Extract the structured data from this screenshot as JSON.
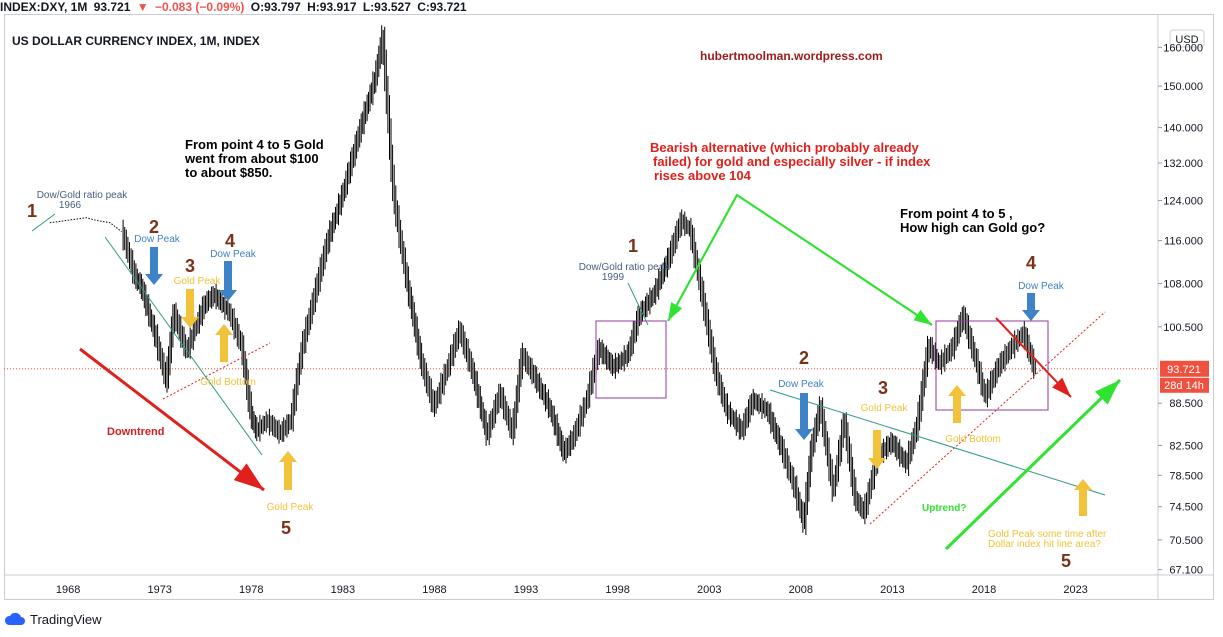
{
  "header": {
    "symbol": "INDEX:DXY, 1M",
    "last": "93.721",
    "change_icon": "down-triangle",
    "change": "−0.083 (−0.09%)",
    "open": "O:93.797",
    "high": "H:93.917",
    "low": "L:93.527",
    "close": "C:93.721"
  },
  "footer": {
    "brand": "TradingView"
  },
  "colors": {
    "candle": "#000000",
    "red": "#e0201c",
    "green": "#32e232",
    "blue": "#3e82c8",
    "yellow": "#f2c23a",
    "brown": "#7b3219",
    "purple": "#8f3a9c",
    "teal": "#2e9b8a",
    "price": "#f0513f"
  },
  "chart_data": {
    "type": "candlestick",
    "title": "US DOLLAR CURRENCY INDEX, 1M, INDEX",
    "watermark": "hubertmoolman.wordpress.com",
    "currency_badge": "USD",
    "y_scale": "log",
    "ylim": [
      66.5,
      168
    ],
    "xlim": [
      1964.5,
      2027.5
    ],
    "x_ticks": [
      "1968",
      "1973",
      "1978",
      "1983",
      "1988",
      "1993",
      "1998",
      "2003",
      "2008",
      "2013",
      "2018",
      "2023"
    ],
    "y_ticks": [
      "160.000",
      "150.000",
      "140.000",
      "132.000",
      "124.000",
      "116.000",
      "108.000",
      "100.500",
      "93.721",
      "88.500",
      "82.500",
      "78.500",
      "74.500",
      "70.500",
      "67.100"
    ],
    "last_price": "93.721",
    "countdown": "28d 14h",
    "series": [
      {
        "x": [
          1967.0,
          1969.0,
          1969.5,
          1970.3,
          1971.0,
          1971.7,
          1972.0,
          1972.8,
          1973.4,
          1973.8,
          1974.5,
          1975.0,
          1975.5,
          1976.0,
          1976.8,
          1977.5,
          1978.0,
          1978.3,
          1978.9,
          1979.6,
          1980.2,
          1980.8,
          1981.5,
          1982.2,
          1983.0,
          1984.0,
          1984.8,
          1985.2,
          1985.8,
          1986.5,
          1987.3,
          1988.0,
          1988.7,
          1989.4,
          1990.1,
          1990.9,
          1991.6,
          1992.3,
          1992.8,
          1993.5,
          1994.3,
          1995.1,
          1995.6,
          1996.3,
          1997.0,
          1997.8,
          1998.6,
          1999.2,
          2000.0,
          2000.8,
          2001.5,
          2002.0,
          2002.7,
          2003.4,
          2004.0,
          2004.8,
          2005.4,
          2006.2,
          2007.0,
          2007.7,
          2008.2,
          2008.6,
          2009.1,
          2009.8,
          2010.4,
          2011.0,
          2011.5,
          2012.2,
          2013.0,
          2013.8,
          2014.4,
          2015.0,
          2015.6,
          2016.3,
          2016.9,
          2017.5,
          2018.1,
          2018.8,
          2019.5,
          2020.2,
          2020.8
        ],
        "close": [
          119.5,
          120.5,
          120.0,
          119.5,
          117.5,
          109.0,
          107.8,
          99.0,
          91.8,
          103.0,
          96.5,
          100.5,
          104.5,
          106.0,
          103.2,
          97.5,
          87.0,
          84.5,
          86.0,
          84.2,
          86.0,
          97.0,
          106.0,
          116.0,
          125.0,
          140.0,
          152.0,
          163.0,
          125.0,
          109.0,
          95.0,
          88.0,
          93.5,
          100.0,
          93.5,
          84.0,
          90.0,
          84.2,
          96.0,
          92.5,
          88.0,
          81.5,
          83.5,
          88.5,
          97.0,
          94.0,
          96.0,
          102.5,
          106.0,
          112.5,
          120.0,
          118.0,
          105.0,
          93.0,
          87.5,
          84.5,
          89.0,
          87.5,
          82.0,
          77.0,
          72.5,
          82.0,
          88.0,
          76.5,
          86.0,
          75.5,
          73.8,
          81.0,
          83.0,
          80.0,
          85.5,
          97.5,
          94.5,
          97.0,
          102.5,
          96.0,
          89.5,
          94.0,
          97.0,
          99.5,
          93.72
        ]
      }
    ],
    "annotations": [
      "From point 4 to 5 Gold",
      "went from about $100",
      "to about $850.",
      "Bearish alternative (which probably already",
      "failed) for gold and especially silver - if index",
      "rises above 104",
      "From point 4 to 5 ,",
      "How high can Gold go?",
      "Dow/Gold ratio peak",
      "1966",
      "Dow/Gold ratio peak",
      "1999",
      "Dow Peak",
      "Gold Peak",
      "Gold Bottom",
      "Downtrend",
      "Uptrend?",
      "Gold Peak some time after",
      "Dollar index hit line area?"
    ],
    "wave_labels": [
      "1",
      "2",
      "3",
      "4",
      "5",
      "1",
      "2",
      "3",
      "4",
      "5"
    ]
  }
}
